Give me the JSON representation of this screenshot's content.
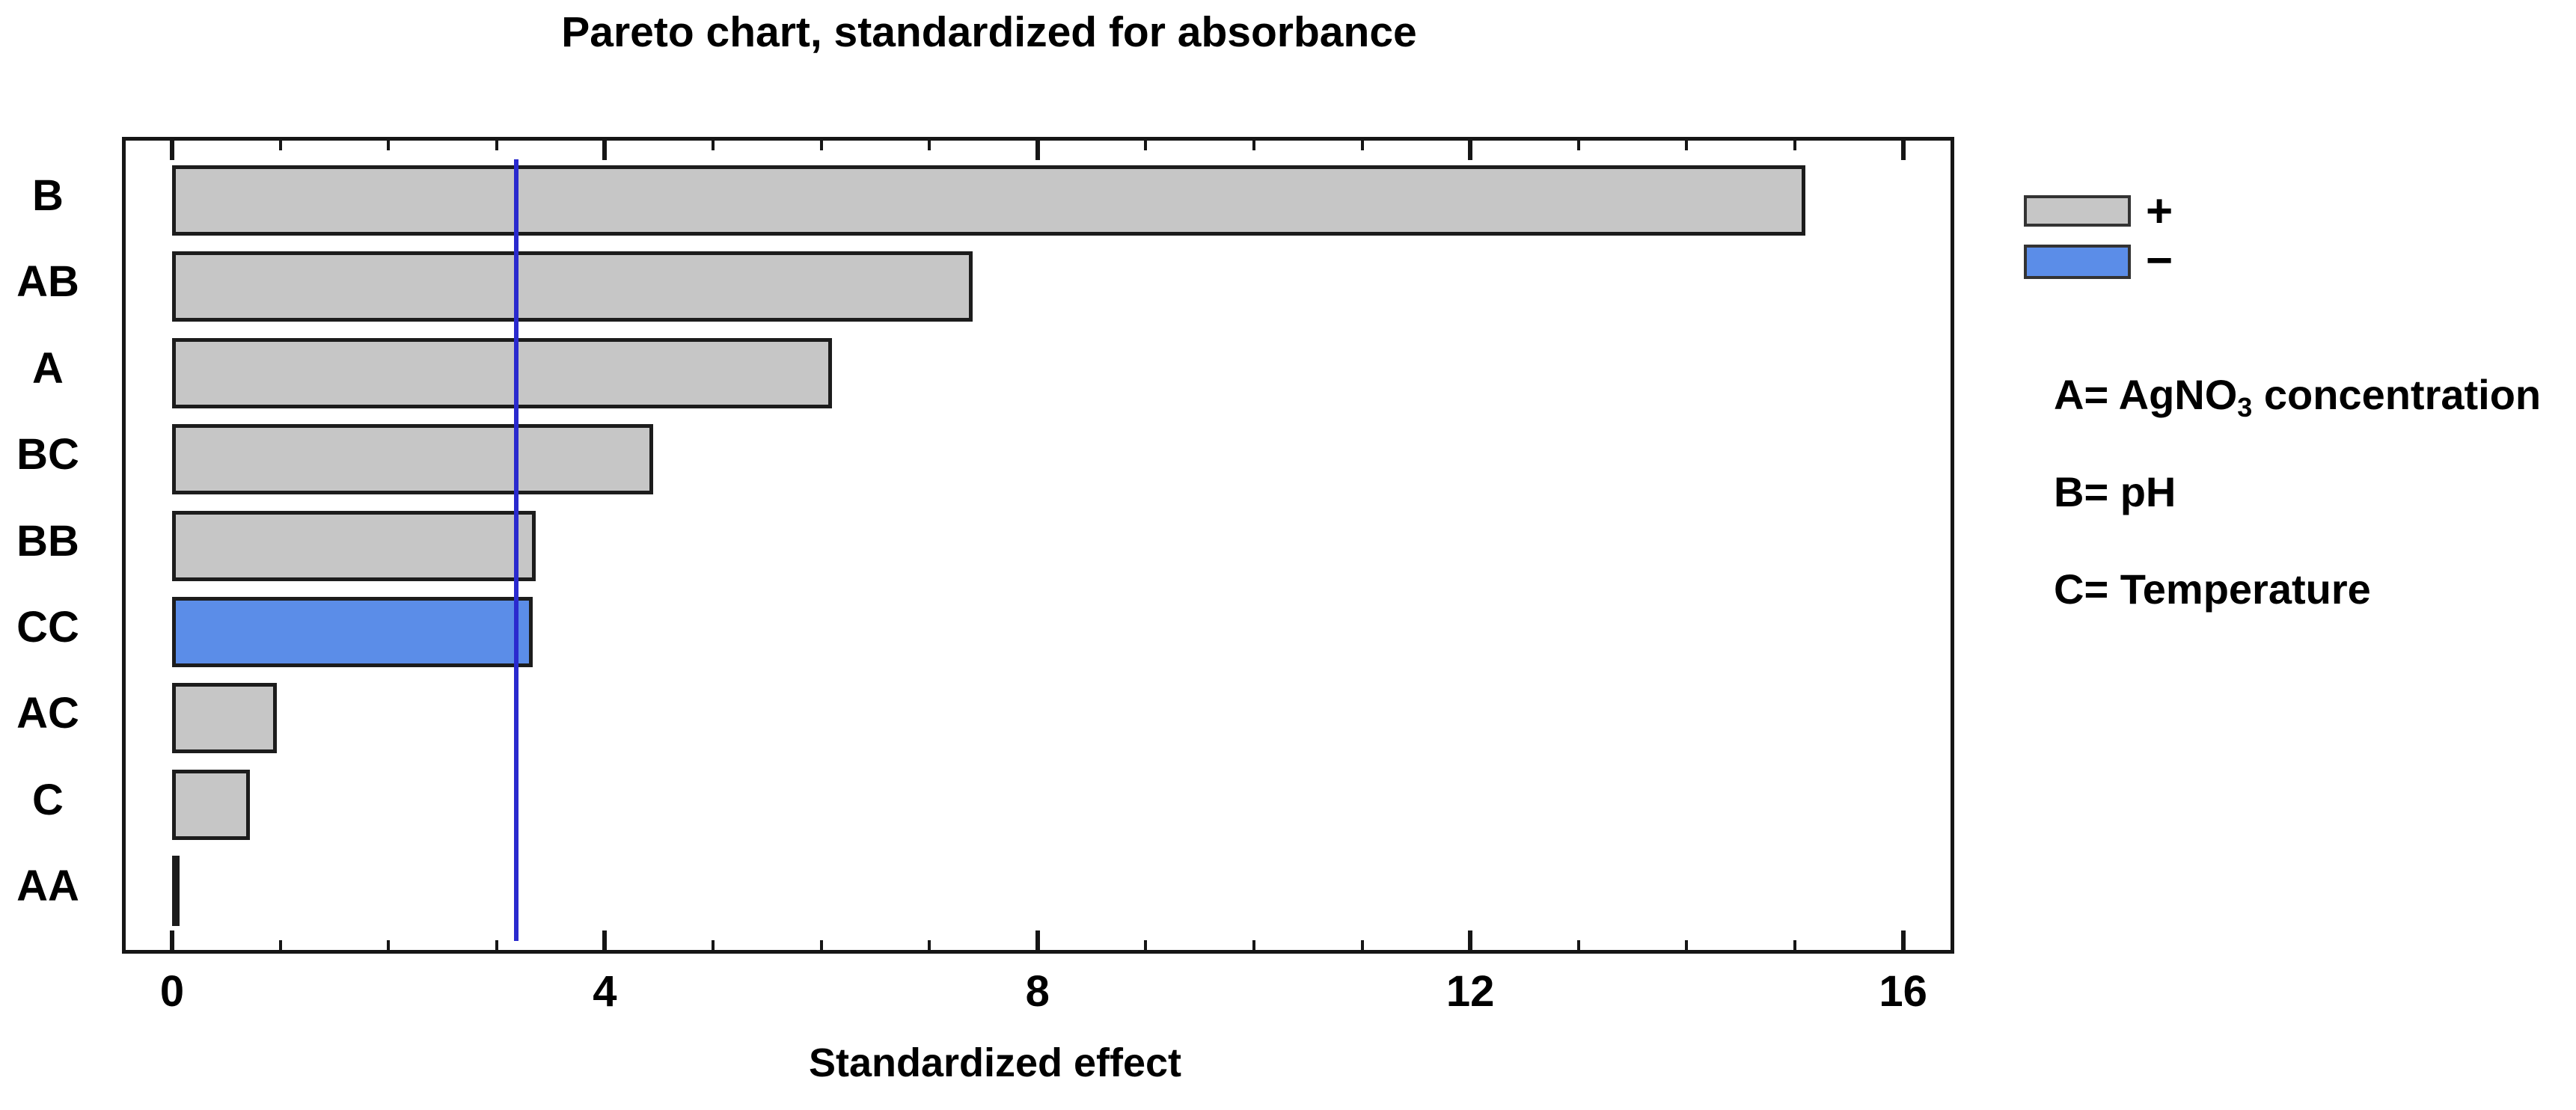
{
  "title": "Pareto chart, standardized for absorbance",
  "chart_data": {
    "type": "bar",
    "orientation": "horizontal",
    "categories": [
      "B",
      "AB",
      "A",
      "BC",
      "BB",
      "CC",
      "AC",
      "C",
      "AA"
    ],
    "values": [
      15.1,
      7.4,
      6.1,
      4.45,
      3.36,
      3.33,
      0.97,
      0.72,
      0.06
    ],
    "signs": [
      "+",
      "+",
      "+",
      "+",
      "+",
      "-",
      "+",
      "+",
      "-"
    ],
    "title": "Pareto chart, standardized for absorbance",
    "xlabel": "Standardized effect",
    "ylabel": "",
    "xlim": [
      0,
      16
    ],
    "x_major_ticks": [
      0,
      4,
      8,
      12,
      16
    ],
    "x_minor_tick_step": 1,
    "reference_line": 3.18,
    "grid": false,
    "legend_position": "right",
    "colors": {
      "positive_fill": "#c6c6c6",
      "negative_fill": "#5b8de8",
      "bar_border": "#1c1c1c",
      "reference_line": "#2a2ace",
      "frame": "#161616"
    }
  },
  "legend": {
    "positive_label": "+",
    "negative_label": "−"
  },
  "factor_definitions": {
    "a_prefix": "A= AgNO",
    "a_sub": "3",
    "a_suffix": " concentration",
    "b": "B= pH",
    "c": "C= Temperature"
  }
}
